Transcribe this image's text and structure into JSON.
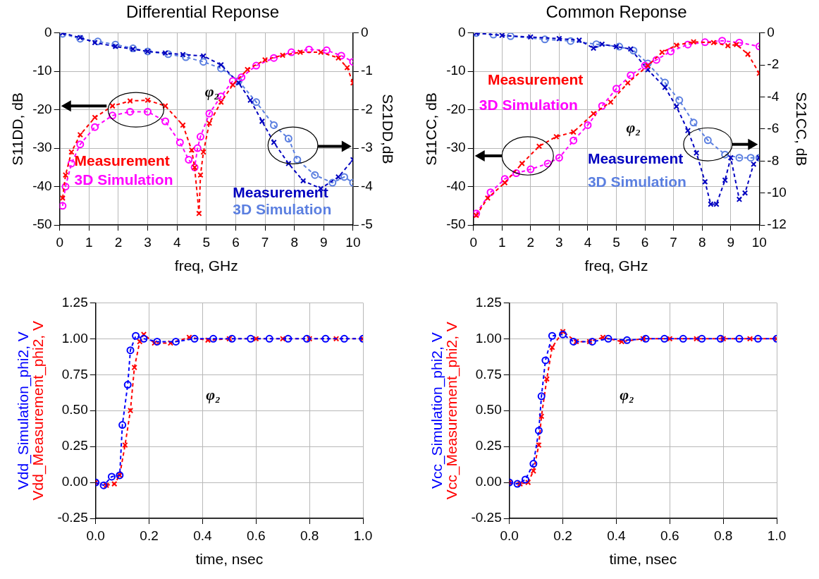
{
  "chart_data": [
    {
      "type": "line",
      "title": "Differential Reponse",
      "xlabel": "freq, GHz",
      "ylabel": "S11DD, dB",
      "y2label": "S21DD,dB",
      "xlim": [
        0,
        10
      ],
      "xticks": [
        0,
        1,
        2,
        3,
        4,
        5,
        6,
        7,
        8,
        9,
        10
      ],
      "ylim": [
        -50,
        0
      ],
      "yticks": [
        -50,
        -40,
        -30,
        -20,
        -10,
        0
      ],
      "y2lim": [
        -5,
        0
      ],
      "y2ticks": [
        -5,
        -4,
        -3,
        -2,
        -1,
        0
      ],
      "grid": true,
      "legend": false,
      "line_style": "dashed",
      "annotations": [
        "φ₂"
      ],
      "series": [
        {
          "name": "Measurement",
          "color": "#ff0000",
          "marker": "cross",
          "x": [
            0.1,
            0.2,
            0.4,
            0.7,
            1.2,
            1.8,
            2.4,
            3.0,
            3.6,
            4.2,
            4.5,
            4.6,
            4.75,
            4.8,
            4.9,
            5.1,
            5.5,
            5.9,
            6.4,
            7.0,
            7.6,
            8.2,
            8.9,
            9.5,
            9.8,
            10
          ],
          "values": [
            -43,
            -37,
            -31,
            -26.5,
            -22,
            -19,
            -17.7,
            -17.5,
            -19,
            -24,
            -30.5,
            -35,
            -47,
            -37,
            -31,
            -23.5,
            -18,
            -13.5,
            -9.5,
            -7,
            -5.8,
            -5,
            -5,
            -6.5,
            -9,
            -13
          ]
        },
        {
          "name": "3D Simulation",
          "color": "#ff00ff",
          "marker": "circle",
          "x": [
            0.1,
            0.2,
            0.4,
            0.7,
            1.2,
            1.8,
            2.4,
            3.0,
            3.6,
            4.1,
            4.4,
            4.6,
            4.7,
            4.8,
            5.1,
            5.5,
            5.9,
            6.2,
            6.7,
            7.3,
            7.9,
            8.5,
            9.1,
            9.6,
            10
          ],
          "values": [
            -45,
            -40,
            -34,
            -29,
            -24.5,
            -21.5,
            -20.5,
            -20.5,
            -23,
            -28.5,
            -33,
            -35,
            -30,
            -27,
            -21,
            -16.5,
            -12.5,
            -11.5,
            -8.5,
            -6.5,
            -5,
            -4.3,
            -4.5,
            -5.9,
            -7.5
          ]
        },
        {
          "name": "Measurement",
          "color": "#0000c0",
          "marker": "cross",
          "axis": "y2",
          "x": [
            0.1,
            0.7,
            1.2,
            1.9,
            2.5,
            3.0,
            3.6,
            4.2,
            4.9,
            5.5,
            6.1,
            6.5,
            6.9,
            7.3,
            7.8,
            8.3,
            8.9,
            9.5,
            10
          ],
          "values": [
            0,
            -0.12,
            -0.25,
            -0.35,
            -0.42,
            -0.48,
            -0.52,
            -0.56,
            -0.6,
            -0.83,
            -1.3,
            -1.75,
            -2.3,
            -2.85,
            -3.4,
            -3.85,
            -4.05,
            -3.75,
            -3.3
          ]
        },
        {
          "name": "3D Simulation",
          "color": "#5b7fe0",
          "marker": "circle",
          "axis": "y2",
          "x": [
            0.1,
            0.7,
            1.3,
            1.9,
            2.5,
            3.0,
            3.7,
            4.3,
            4.9,
            5.5,
            6.1,
            6.7,
            7.3,
            7.8,
            8.1,
            8.7,
            9.3,
            9.7,
            10
          ],
          "values": [
            -0.02,
            -0.15,
            -0.22,
            -0.3,
            -0.4,
            -0.48,
            -0.55,
            -0.63,
            -0.75,
            -0.92,
            -1.25,
            -1.8,
            -2.4,
            -2.75,
            -3.3,
            -3.7,
            -3.9,
            -3.75,
            -3.9
          ]
        }
      ]
    },
    {
      "type": "line",
      "title": "Common Reponse",
      "xlabel": "freq, GHz",
      "ylabel": "S11CC, dB",
      "y2label": "S21CC, dB",
      "xlim": [
        0,
        10
      ],
      "xticks": [
        0,
        1,
        2,
        3,
        4,
        5,
        6,
        7,
        8,
        9,
        10
      ],
      "ylim": [
        -50,
        0
      ],
      "yticks": [
        -50,
        -40,
        -30,
        -20,
        -10,
        0
      ],
      "y2lim": [
        -12,
        0
      ],
      "y2ticks": [
        -12,
        -10,
        -8,
        -6,
        -4,
        -2,
        0
      ],
      "grid": true,
      "legend": false,
      "line_style": "dashed",
      "annotations": [
        "φ₂"
      ],
      "series": [
        {
          "name": "Measurement",
          "color": "#ff0000",
          "marker": "cross",
          "x": [
            0.1,
            0.5,
            1.1,
            1.7,
            2.3,
            2.9,
            3.5,
            4.2,
            4.8,
            5.4,
            6.1,
            6.6,
            7.1,
            7.7,
            8.4,
            8.9,
            9.2,
            9.6,
            10
          ],
          "values": [
            -47.5,
            -43,
            -39,
            -34,
            -29.5,
            -27,
            -25.8,
            -21,
            -18,
            -13,
            -8.5,
            -5,
            -3.2,
            -2.3,
            -2.5,
            -3.3,
            -3,
            -5.5,
            -10.5
          ]
        },
        {
          "name": "3D Simulation",
          "color": "#ff00ff",
          "marker": "circle",
          "x": [
            0.1,
            0.6,
            1.1,
            1.5,
            2.0,
            2.6,
            3.0,
            3.5,
            4.0,
            4.5,
            5.0,
            5.5,
            6.0,
            6.4,
            6.9,
            7.5,
            8.1,
            8.7,
            9.3,
            10
          ],
          "values": [
            -47,
            -41.5,
            -38,
            -36.5,
            -35.5,
            -34,
            -32.5,
            -28,
            -24,
            -19,
            -14.5,
            -11,
            -8.5,
            -7,
            -4.8,
            -3,
            -2.4,
            -2,
            -2.5,
            -3.5
          ]
        },
        {
          "name": "Measurement",
          "color": "#0000c0",
          "marker": "cross",
          "axis": "y2",
          "x": [
            0.1,
            1,
            2,
            3,
            3.7,
            4.2,
            4.5,
            5.0,
            5.5,
            6.1,
            6.7,
            7.1,
            7.5,
            7.8,
            8.1,
            8.3,
            8.5,
            8.8,
            9.0,
            9.3,
            9.5,
            9.8,
            10
          ],
          "values": [
            0,
            -0.15,
            -0.25,
            -0.35,
            -0.45,
            -0.95,
            -0.7,
            -0.85,
            -1.0,
            -2.3,
            -3.4,
            -4.6,
            -6.1,
            -7.5,
            -9.3,
            -10.7,
            -10.7,
            -9.2,
            -7.8,
            -10.4,
            -10,
            -8.2,
            -7.8
          ]
        },
        {
          "name": "3D Simulation",
          "color": "#5b7fe0",
          "marker": "circle",
          "axis": "y2",
          "x": [
            0.1,
            0.7,
            1.3,
            2.5,
            3.4,
            4.3,
            5.1,
            5.6,
            6.1,
            6.7,
            7.2,
            7.7,
            8.2,
            8.8,
            9.3,
            9.7,
            10
          ],
          "values": [
            0,
            -0.1,
            -0.2,
            -0.4,
            -0.5,
            -0.7,
            -0.85,
            -1.1,
            -1.9,
            -3.1,
            -4.2,
            -5.6,
            -6.7,
            -7.6,
            -7.8,
            -7.8,
            -7.8
          ]
        }
      ]
    },
    {
      "type": "line",
      "xlabel": "time, nsec",
      "xlim": [
        0,
        1
      ],
      "xticks": [
        {
          "value": 0,
          "label": "0.0"
        },
        {
          "value": 0.2,
          "label": "0.2"
        },
        {
          "value": 0.4,
          "label": "0.4"
        },
        {
          "value": 0.6,
          "label": "0.6"
        },
        {
          "value": 0.8,
          "label": "0.8"
        },
        {
          "value": 1,
          "label": "1.0"
        }
      ],
      "ylim": [
        -0.25,
        1.25
      ],
      "yticks": [
        {
          "value": -0.25,
          "label": "-0.25"
        },
        {
          "value": 0,
          "label": "0.00"
        },
        {
          "value": 0.25,
          "label": "0.25"
        },
        {
          "value": 0.5,
          "label": "0.50"
        },
        {
          "value": 0.75,
          "label": "0.75"
        },
        {
          "value": 1,
          "label": "1.00"
        },
        {
          "value": 1.25,
          "label": "1.25"
        }
      ],
      "grid": true,
      "legend": false,
      "line_style": "dashed",
      "annotations": [
        "φ₂"
      ],
      "series": [
        {
          "name": "Vdd_Simulation_phi2, V",
          "color": "#0000ff",
          "marker": "circle",
          "x": [
            0,
            0.03,
            0.06,
            0.09,
            0.1,
            0.12,
            0.13,
            0.15,
            0.18,
            0.23,
            0.3,
            0.37,
            0.44,
            0.51,
            0.58,
            0.65,
            0.72,
            0.79,
            0.86,
            0.93,
            1.0
          ],
          "values": [
            0,
            -0.02,
            0.04,
            0.05,
            0.4,
            0.68,
            0.92,
            1.02,
            1.0,
            0.98,
            0.98,
            1.0,
            1.0,
            1.0,
            1.0,
            1.0,
            1.0,
            1.0,
            1.0,
            1.0,
            1.0
          ]
        },
        {
          "name": "Vdd_Measurement_phi2, V",
          "color": "#ff0000",
          "marker": "cross",
          "x": [
            0,
            0.02,
            0.04,
            0.07,
            0.09,
            0.11,
            0.13,
            0.145,
            0.165,
            0.18,
            0.22,
            0.28,
            0.35,
            0.42,
            0.5,
            0.6,
            0.7,
            0.8,
            0.9,
            1.0
          ],
          "values": [
            0,
            null,
            -0.02,
            -0.01,
            0.05,
            0.26,
            0.5,
            0.8,
            0.98,
            1.03,
            0.97,
            0.97,
            1.01,
            0.99,
            1.0,
            1.0,
            1.0,
            1.0,
            1.0,
            1.0
          ]
        }
      ]
    },
    {
      "type": "line",
      "xlabel": "time, nsec",
      "xlim": [
        0,
        1
      ],
      "xticks": [
        {
          "value": 0,
          "label": "0.0"
        },
        {
          "value": 0.2,
          "label": "0.2"
        },
        {
          "value": 0.4,
          "label": "0.4"
        },
        {
          "value": 0.6,
          "label": "0.6"
        },
        {
          "value": 0.8,
          "label": "0.8"
        },
        {
          "value": 1,
          "label": "1.0"
        }
      ],
      "ylim": [
        -0.25,
        1.25
      ],
      "yticks": [
        {
          "value": -0.25,
          "label": "-0.25"
        },
        {
          "value": 0,
          "label": "0.00"
        },
        {
          "value": 0.25,
          "label": "0.25"
        },
        {
          "value": 0.5,
          "label": "0.50"
        },
        {
          "value": 0.75,
          "label": "0.75"
        },
        {
          "value": 1,
          "label": "1.00"
        },
        {
          "value": 1.25,
          "label": "1.25"
        }
      ],
      "grid": true,
      "legend": false,
      "line_style": "dashed",
      "annotations": [
        "φ₂"
      ],
      "series": [
        {
          "name": "Vcc_Simulation_phi2, V",
          "color": "#0000ff",
          "marker": "circle",
          "x": [
            0,
            0.03,
            0.06,
            0.09,
            0.11,
            0.12,
            0.135,
            0.16,
            0.2,
            0.24,
            0.31,
            0.37,
            0.44,
            0.51,
            0.58,
            0.65,
            0.72,
            0.79,
            0.86,
            0.93,
            1.0
          ],
          "values": [
            0,
            -0.01,
            0.02,
            0.13,
            0.36,
            0.6,
            0.85,
            1.02,
            1.03,
            0.98,
            0.98,
            1.0,
            0.99,
            1.0,
            1.0,
            1.0,
            1.0,
            1.0,
            1.0,
            1.0,
            1.0
          ]
        },
        {
          "name": "Vcc_Measurement_phi2, V",
          "color": "#ff0000",
          "marker": "cross",
          "x": [
            0,
            0.04,
            0.07,
            0.09,
            0.11,
            0.12,
            0.14,
            0.16,
            0.2,
            0.25,
            0.3,
            0.35,
            0.42,
            0.5,
            0.6,
            0.7,
            0.8,
            0.9,
            1.0
          ],
          "values": [
            0,
            -0.01,
            0,
            0.08,
            0.26,
            0.46,
            0.72,
            0.94,
            1.05,
            0.98,
            0.98,
            1.01,
            0.98,
            1.0,
            1.0,
            1.0,
            1.0,
            1.0,
            1.0
          ]
        }
      ]
    }
  ]
}
